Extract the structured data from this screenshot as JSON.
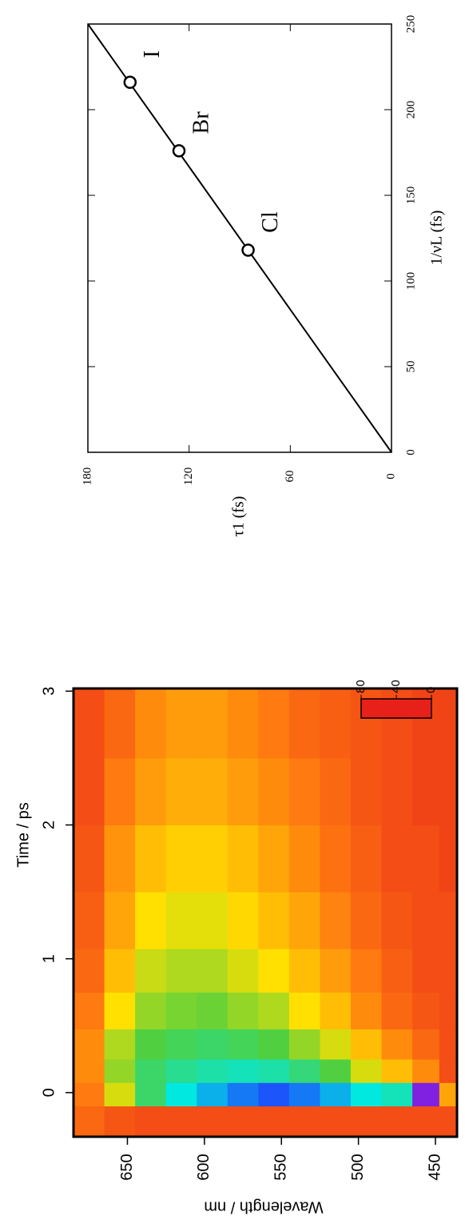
{
  "chart_data": [
    {
      "type": "line",
      "xlabel": "1/νL (fs)",
      "ylabel": "τ1 (fs)",
      "xlim": [
        0,
        250
      ],
      "ylim": [
        0,
        180
      ],
      "xticks": [
        0,
        50,
        100,
        150,
        200,
        250
      ],
      "yticks": [
        0,
        60,
        120,
        180
      ],
      "fit": {
        "x": [
          0,
          250
        ],
        "y": [
          0,
          180
        ],
        "color": "#000000"
      },
      "points": {
        "x": [
          118,
          176,
          216
        ],
        "y": [
          85,
          126,
          155
        ],
        "labels": [
          "Cl",
          "Br",
          "I"
        ],
        "color": "#000000"
      }
    },
    {
      "type": "heatmap",
      "xlabel": "Wavelength / nm",
      "ylabel": "Time / ps",
      "xlim": [
        685,
        436
      ],
      "ylim": [
        -0.33,
        3.02
      ],
      "xticks": [
        650,
        600,
        550,
        500,
        450
      ],
      "yticks": [
        0,
        1,
        2,
        3
      ],
      "x": [
        675,
        655,
        635,
        615,
        595,
        575,
        555,
        535,
        515,
        495,
        475,
        455,
        440
      ],
      "y": [
        -0.2,
        0,
        0.15,
        0.35,
        0.6,
        0.9,
        1.25,
        1.75,
        2.25,
        2.75
      ],
      "z": [
        [
          8,
          6,
          5,
          5,
          5,
          5,
          5,
          5,
          5,
          5,
          5,
          5,
          5
        ],
        [
          10,
          25,
          40,
          55,
          60,
          65,
          68,
          65,
          60,
          55,
          50,
          80,
          15
        ],
        [
          12,
          30,
          40,
          45,
          48,
          50,
          48,
          42,
          35,
          25,
          18,
          12,
          5
        ],
        [
          12,
          28,
          35,
          38,
          40,
          38,
          35,
          30,
          25,
          18,
          12,
          8,
          5
        ],
        [
          10,
          22,
          30,
          32,
          33,
          30,
          28,
          22,
          18,
          12,
          8,
          6,
          5
        ],
        [
          8,
          18,
          26,
          28,
          28,
          25,
          22,
          18,
          14,
          10,
          7,
          5,
          5
        ],
        [
          7,
          15,
          22,
          24,
          24,
          21,
          18,
          15,
          11,
          8,
          6,
          5,
          5
        ],
        [
          6,
          13,
          18,
          20,
          20,
          18,
          15,
          12,
          9,
          7,
          5,
          5,
          4
        ],
        [
          5,
          10,
          14,
          16,
          16,
          14,
          12,
          10,
          8,
          6,
          5,
          4,
          4
        ],
        [
          5,
          8,
          12,
          14,
          14,
          12,
          10,
          8,
          7,
          6,
          5,
          4,
          4
        ]
      ],
      "colorscale": [
        [
          0,
          "#e8201a"
        ],
        [
          10,
          "#ff7a10"
        ],
        [
          22,
          "#ffe000"
        ],
        [
          35,
          "#50d040"
        ],
        [
          55,
          "#00e8e0"
        ],
        [
          70,
          "#2040ff"
        ],
        [
          80,
          "#8020e0"
        ]
      ],
      "colorbar": {
        "lim": [
          80,
          0
        ],
        "ticks": [
          80,
          40,
          0
        ]
      }
    }
  ]
}
